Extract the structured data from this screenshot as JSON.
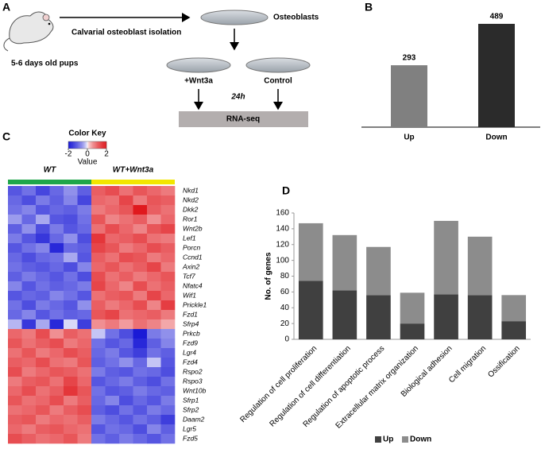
{
  "panels": [
    "A",
    "B",
    "C",
    "D"
  ],
  "diagram": {
    "mouse_label": "5-6 days old pups",
    "isolation": "Calvarial osteoblast isolation",
    "dish": "Osteoblasts",
    "treated": "+Wnt3a",
    "control": "Control",
    "time": "24h",
    "assay": "RNA-seq"
  },
  "chart_data": [
    {
      "type": "bar",
      "categories": [
        "Up",
        "Down"
      ],
      "values": [
        293,
        489
      ],
      "colors": [
        "#808080",
        "#2b2b2b"
      ]
    },
    {
      "type": "heatmap",
      "groups": [
        {
          "name": "WT",
          "color": "#1fa64a"
        },
        {
          "name": "WT+Wnt3a",
          "color": "#f2e600"
        }
      ],
      "rows": [
        "Nkd1",
        "Nkd2",
        "Dkk2",
        "Ror1",
        "Wnt2b",
        "Lef1",
        "Porcn",
        "Ccnd1",
        "Axin2",
        "Tcf7",
        "Nfatc4",
        "Wif1",
        "Prickle1",
        "Fzd1",
        "Sfrp4",
        "Prkcb",
        "Fzd9",
        "Lgr4",
        "Fzd4",
        "Rspo2",
        "Rspo3",
        "Wnt10b",
        "Sfrp1",
        "Sfrp2",
        "Daam2",
        "Lgr5",
        "Fzd5"
      ],
      "values": [
        [
          -1.2,
          -0.9,
          -1.4,
          -1.0,
          -0.6,
          -1.1,
          1.1,
          1.3,
          0.9,
          1.2,
          1.0,
          0.8
        ],
        [
          -1.0,
          -1.3,
          -0.8,
          -1.1,
          -0.7,
          -1.4,
          1.0,
          0.9,
          1.4,
          0.8,
          1.2,
          1.1
        ],
        [
          -0.9,
          -0.7,
          -1.2,
          -1.0,
          -1.1,
          -0.8,
          0.8,
          1.0,
          1.2,
          2.0,
          1.1,
          0.9
        ],
        [
          -0.5,
          -1.0,
          -0.4,
          -1.2,
          -1.3,
          -0.9,
          1.2,
          0.7,
          0.9,
          1.1,
          0.6,
          1.0
        ],
        [
          -1.1,
          -0.6,
          -1.3,
          -0.8,
          -1.2,
          -1.0,
          0.9,
          1.3,
          1.0,
          0.7,
          1.2,
          1.4
        ],
        [
          -0.8,
          -1.2,
          -1.6,
          -1.0,
          -0.6,
          -1.3,
          1.6,
          1.0,
          1.1,
          1.3,
          0.9,
          0.8
        ],
        [
          -1.2,
          -0.9,
          -0.7,
          -1.8,
          -1.0,
          -1.1,
          1.4,
          1.2,
          0.8,
          1.0,
          1.3,
          1.1
        ],
        [
          -1.0,
          -1.3,
          -1.0,
          -0.9,
          -0.4,
          -1.2,
          1.1,
          0.9,
          1.3,
          1.2,
          0.8,
          1.0
        ],
        [
          -0.9,
          -1.1,
          -1.2,
          -1.0,
          -1.3,
          -0.7,
          1.0,
          1.2,
          0.9,
          1.1,
          1.4,
          0.8
        ],
        [
          -1.1,
          -0.8,
          -1.0,
          -1.2,
          -0.9,
          -1.3,
          1.3,
          0.9,
          1.1,
          0.8,
          1.0,
          1.2
        ],
        [
          -0.7,
          -1.2,
          -0.9,
          -1.1,
          -1.0,
          -0.8,
          1.4,
          1.0,
          0.7,
          1.3,
          0.9,
          1.1
        ],
        [
          -1.2,
          -1.0,
          -1.1,
          -0.7,
          -0.9,
          -1.2,
          0.9,
          1.1,
          1.2,
          0.8,
          1.4,
          1.0
        ],
        [
          -0.9,
          -1.3,
          -0.8,
          -1.0,
          -1.2,
          -0.6,
          1.1,
          0.8,
          1.0,
          1.3,
          0.7,
          1.5
        ],
        [
          -1.0,
          -0.7,
          -1.2,
          -0.9,
          -1.1,
          -1.0,
          1.2,
          1.4,
          0.9,
          1.0,
          1.1,
          0.8
        ],
        [
          -0.3,
          -1.6,
          -0.4,
          -1.8,
          -0.1,
          -1.5,
          0.6,
          0.8,
          0.5,
          0.9,
          0.7,
          0.4
        ],
        [
          1.0,
          0.8,
          1.3,
          0.6,
          1.1,
          0.9,
          -0.2,
          -0.9,
          -1.3,
          -2.0,
          -0.8,
          -0.6
        ],
        [
          1.2,
          0.9,
          1.1,
          1.3,
          0.8,
          1.0,
          -0.9,
          -1.2,
          -1.0,
          -1.8,
          -1.1,
          -0.7
        ],
        [
          0.9,
          1.2,
          0.8,
          1.0,
          1.3,
          1.1,
          -1.0,
          -0.8,
          -1.2,
          -1.5,
          -0.9,
          -1.1
        ],
        [
          1.1,
          1.0,
          1.3,
          0.9,
          0.8,
          1.2,
          -1.1,
          -0.9,
          -0.6,
          -1.0,
          -0.2,
          -1.2
        ],
        [
          1.3,
          0.8,
          1.0,
          1.2,
          1.1,
          0.9,
          -0.8,
          -1.1,
          -1.2,
          -0.9,
          -1.0,
          -1.3
        ],
        [
          0.8,
          1.1,
          1.2,
          0.9,
          1.4,
          1.0,
          -1.2,
          -1.0,
          -0.8,
          -1.1,
          -1.3,
          -0.9
        ],
        [
          1.0,
          1.3,
          0.9,
          1.1,
          1.6,
          1.2,
          -0.9,
          -1.2,
          -1.1,
          -0.8,
          -1.0,
          -1.1
        ],
        [
          1.2,
          0.9,
          1.0,
          1.3,
          0.8,
          1.1,
          -1.0,
          -0.7,
          -1.3,
          -1.0,
          -1.2,
          -0.8
        ],
        [
          0.9,
          1.0,
          1.2,
          0.8,
          1.1,
          1.3,
          -1.1,
          -1.3,
          -0.9,
          -1.2,
          -0.8,
          -1.0
        ],
        [
          1.1,
          1.2,
          0.8,
          1.0,
          0.9,
          1.1,
          -0.8,
          -1.0,
          -1.2,
          -0.9,
          -1.1,
          -1.5
        ],
        [
          1.0,
          0.8,
          1.1,
          1.2,
          1.0,
          0.9,
          -1.2,
          -0.9,
          -1.0,
          -1.3,
          -0.7,
          -1.1
        ],
        [
          1.3,
          1.1,
          0.9,
          1.0,
          1.2,
          0.8,
          -0.9,
          -1.1,
          -0.8,
          -1.0,
          -1.2,
          -0.9
        ]
      ],
      "colorbar": {
        "title": "Color Key",
        "label": "Value",
        "lim": [
          -2,
          2
        ],
        "ticks": [
          -2,
          0,
          2
        ],
        "colors": [
          "#1a1ad6",
          "#ffffff",
          "#e0191e"
        ]
      }
    },
    {
      "type": "bar",
      "stacked": true,
      "ylabel": "No. of genes",
      "categories": [
        "Regulation of cell proliferation",
        "Regulation of cell differentiation",
        "Regulation of apoptotic process",
        "Extracellular matrix organization",
        "Biological adhesion",
        "Cell migration",
        "Ossification"
      ],
      "series": [
        {
          "name": "Up",
          "color": "#404040",
          "values": [
            74,
            62,
            56,
            20,
            57,
            56,
            23
          ]
        },
        {
          "name": "Down",
          "color": "#8c8c8c",
          "values": [
            73,
            70,
            61,
            39,
            93,
            74,
            33
          ]
        }
      ],
      "ylim": [
        0,
        160
      ],
      "yticks": [
        0,
        20,
        40,
        60,
        80,
        100,
        120,
        140,
        160
      ],
      "legend": "bottom"
    }
  ]
}
